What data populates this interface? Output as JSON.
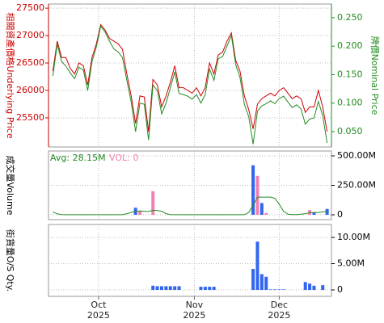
{
  "chart_data": [
    {
      "type": "line",
      "ylabel": "相關資產價格Underlying Price",
      "y2label": "牌價Nominal Price",
      "ylim": [
        24970,
        27575
      ],
      "yticks": [
        25500,
        26000,
        26500,
        27000,
        27500
      ],
      "y2lim": [
        0.023,
        0.274
      ],
      "y2ticks": [
        {
          "value": 0.05,
          "label": "0.050"
        },
        {
          "value": 0.1,
          "label": "0.100"
        },
        {
          "value": 0.15,
          "label": "0.150"
        },
        {
          "value": 0.2,
          "label": "0.200"
        },
        {
          "value": 0.25,
          "label": "0.250"
        }
      ],
      "grid": true,
      "series": [
        {
          "color": "#cc0000",
          "values": [
            26350,
            26900,
            26600,
            26600,
            26400,
            26300,
            26500,
            26450,
            26100,
            26600,
            26850,
            27200,
            27100,
            26950,
            26900,
            26850,
            26750,
            26300,
            25900,
            25400,
            25900,
            25880,
            25250,
            26200,
            26100,
            25700,
            25900,
            26150,
            26450,
            26050,
            26050,
            26000,
            25950,
            26050,
            25900,
            26050,
            26500,
            26300,
            26650,
            26700,
            26900,
            27050,
            26550,
            26350,
            25900,
            25650,
            25300,
            25750,
            25850,
            25900,
            25950,
            25900,
            26000,
            26050,
            25950,
            25850,
            25900,
            25850,
            25600,
            25700,
            25700,
            26000,
            25700,
            25250
          ]
        },
        {
          "color": "#228b22",
          "axis": "y2",
          "values": [
            0.148,
            0.204,
            0.173,
            0.165,
            0.153,
            0.143,
            0.163,
            0.158,
            0.122,
            0.173,
            0.199,
            0.235,
            0.225,
            0.209,
            0.195,
            0.19,
            0.18,
            0.14,
            0.102,
            0.05,
            0.1,
            0.098,
            0.035,
            0.132,
            0.122,
            0.081,
            0.1,
            0.127,
            0.155,
            0.117,
            0.115,
            0.112,
            0.107,
            0.115,
            0.1,
            0.115,
            0.16,
            0.14,
            0.178,
            0.182,
            0.2,
            0.219,
            0.168,
            0.145,
            0.098,
            0.076,
            0.028,
            0.086,
            0.095,
            0.099,
            0.104,
            0.099,
            0.108,
            0.112,
            0.102,
            0.092,
            0.097,
            0.09,
            0.063,
            0.072,
            0.074,
            0.103,
            0.078,
            0.03
          ]
        }
      ]
    },
    {
      "type": "bar",
      "ylabel": "成交量Volume",
      "avg_label": "Avg: 28.15M",
      "vol_label": "VOL: 0",
      "y2lim": [
        -41,
        541
      ],
      "y2ticks": [
        0,
        {
          "value": 250,
          "label": "250.00M"
        },
        {
          "value": 500,
          "label": "500.00M"
        }
      ],
      "grid": true,
      "series": [
        {
          "color": "#3366ee",
          "axis": "y2",
          "values": [
            null,
            null,
            null,
            null,
            null,
            null,
            null,
            null,
            null,
            null,
            null,
            null,
            null,
            null,
            null,
            null,
            null,
            null,
            null,
            60,
            null,
            null,
            null,
            null,
            null,
            null,
            null,
            null,
            null,
            null,
            null,
            null,
            null,
            null,
            null,
            null,
            null,
            null,
            null,
            null,
            null,
            null,
            null,
            null,
            null,
            null,
            420,
            null,
            100,
            null,
            null,
            null,
            null,
            null,
            null,
            null,
            null,
            null,
            null,
            null,
            20,
            null,
            null,
            50
          ]
        },
        {
          "color": "#f080b0",
          "axis": "y2",
          "values": [
            null,
            null,
            null,
            null,
            null,
            null,
            null,
            null,
            null,
            null,
            null,
            null,
            null,
            null,
            null,
            null,
            null,
            null,
            null,
            null,
            30,
            null,
            null,
            200,
            null,
            null,
            null,
            null,
            null,
            null,
            null,
            null,
            null,
            null,
            null,
            null,
            null,
            null,
            null,
            null,
            null,
            null,
            null,
            null,
            null,
            null,
            null,
            330,
            null,
            15,
            null,
            null,
            null,
            null,
            null,
            null,
            null,
            null,
            null,
            40,
            null,
            null,
            null,
            null
          ]
        },
        {
          "color": "#228b22",
          "axis": "y2",
          "type": "line",
          "values": [
            25,
            8,
            2,
            1,
            1,
            1,
            1,
            1,
            1,
            1,
            1,
            1,
            1,
            1,
            1,
            1,
            1,
            10,
            20,
            30,
            32,
            30,
            28,
            38,
            36,
            30,
            10,
            2,
            1,
            1,
            1,
            1,
            1,
            1,
            1,
            1,
            1,
            1,
            1,
            1,
            1,
            1,
            1,
            1,
            1,
            20,
            80,
            150,
            150,
            150,
            150,
            140,
            90,
            30,
            5,
            2,
            2,
            5,
            10,
            18,
            20,
            20,
            25,
            28
          ]
        }
      ]
    },
    {
      "type": "bar",
      "ylabel": "街貨量O/S Qty.",
      "y2lim": [
        -1.23,
        12.46
      ],
      "y2ticks": [
        0,
        {
          "value": 5,
          "label": "5.00M"
        },
        {
          "value": 10,
          "label": "10.00M"
        }
      ],
      "grid": true,
      "xlim": [
        -1,
        64
      ],
      "xticks": [
        {
          "value": 10.5,
          "label": [
            "Oct",
            "2025"
          ]
        },
        {
          "value": 32.5,
          "label": [
            "Nov",
            "2025"
          ]
        },
        {
          "value": 52,
          "label": [
            "Dec",
            "2025"
          ]
        }
      ],
      "series": [
        {
          "color": "#3366ee",
          "axis": "y2",
          "values": [
            null,
            null,
            null,
            null,
            null,
            null,
            null,
            null,
            null,
            null,
            null,
            null,
            null,
            null,
            null,
            null,
            null,
            null,
            null,
            null,
            null,
            null,
            null,
            0.8,
            0.7,
            0.7,
            0.7,
            0.7,
            0.7,
            0.7,
            null,
            null,
            null,
            null,
            0.6,
            0.6,
            0.6,
            0.6,
            null,
            null,
            null,
            null,
            null,
            null,
            null,
            null,
            4,
            9.2,
            3,
            2.5,
            0.1,
            0.1,
            0.1,
            0.1,
            null,
            null,
            null,
            null,
            1.5,
            1.2,
            0.8,
            null,
            0.9,
            null
          ]
        }
      ]
    }
  ]
}
